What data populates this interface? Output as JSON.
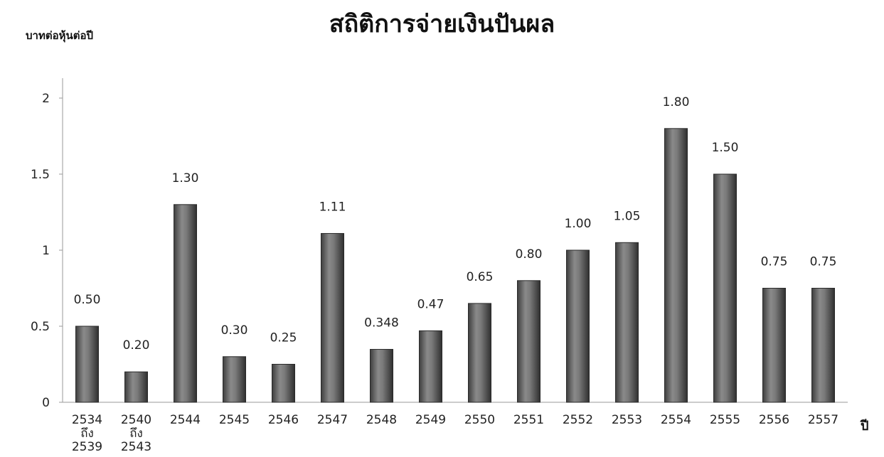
{
  "chart_data": {
    "type": "bar",
    "title": "สถิติการจ่ายเงินปันผล",
    "ylabel": "บาทต่อหุ้นต่อปี",
    "xlabel": "ปี",
    "ylim": [
      0,
      2
    ],
    "yticks": [
      "0",
      "0.5",
      "1",
      "1.5",
      "2"
    ],
    "grid": false,
    "bar_color": "#6b6b6b",
    "categories": [
      [
        "2534",
        "ถึง",
        "2539"
      ],
      [
        "2540",
        "ถึง",
        "2543"
      ],
      [
        "2544"
      ],
      [
        "2545"
      ],
      [
        "2546"
      ],
      [
        "2547"
      ],
      [
        "2548"
      ],
      [
        "2549"
      ],
      [
        "2550"
      ],
      [
        "2551"
      ],
      [
        "2552"
      ],
      [
        "2553"
      ],
      [
        "2554"
      ],
      [
        "2555"
      ],
      [
        "2556"
      ],
      [
        "2557"
      ]
    ],
    "values": [
      0.5,
      0.2,
      1.3,
      0.3,
      0.25,
      1.11,
      0.348,
      0.47,
      0.65,
      0.8,
      1.0,
      1.05,
      1.8,
      1.5,
      0.75,
      0.75
    ],
    "data_labels": [
      "0.50",
      "0.20",
      "1.30",
      "0.30",
      "0.25",
      "1.11",
      "0.348",
      "0.47",
      "0.65",
      "0.80",
      "1.00",
      "1.05",
      "1.80",
      "1.50",
      "0.75",
      "0.75"
    ]
  }
}
